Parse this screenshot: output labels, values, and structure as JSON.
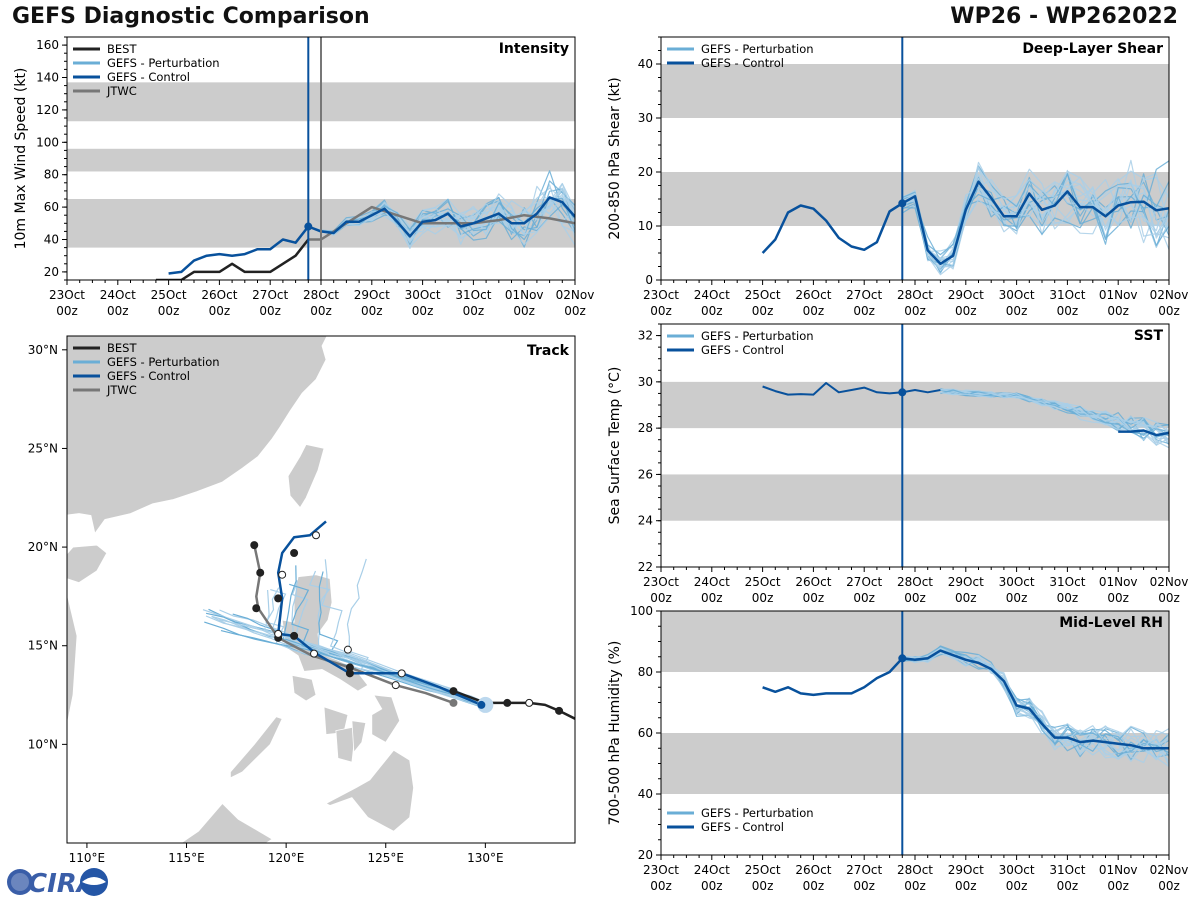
{
  "header": {
    "title_left": "GEFS Diagnostic Comparison",
    "title_right": "WP26 - WP262022"
  },
  "colors": {
    "best": "#222222",
    "perturbation": "#6aaed6",
    "control": "#08519c",
    "jtwc": "#777777",
    "band": "#cccccc",
    "land": "#cccccc"
  },
  "time_axis": {
    "ticks": [
      {
        "day": "23Oct",
        "hour": "00z"
      },
      {
        "day": "24Oct",
        "hour": "00z"
      },
      {
        "day": "25Oct",
        "hour": "00z"
      },
      {
        "day": "26Oct",
        "hour": "00z"
      },
      {
        "day": "27Oct",
        "hour": "00z"
      },
      {
        "day": "28Oct",
        "hour": "00z"
      },
      {
        "day": "29Oct",
        "hour": "00z"
      },
      {
        "day": "30Oct",
        "hour": "00z"
      },
      {
        "day": "31Oct",
        "hour": "00z"
      },
      {
        "day": "01Nov",
        "hour": "00z"
      },
      {
        "day": "02Nov",
        "hour": "00z"
      }
    ]
  },
  "chart_data": [
    {
      "id": "intensity",
      "type": "line",
      "title": "Intensity",
      "ylabel": "10m Max Wind Speed (kt)",
      "ylim": [
        15,
        165
      ],
      "yticks": [
        20,
        40,
        60,
        80,
        100,
        120,
        140,
        160
      ],
      "bands": [
        [
          35,
          65
        ],
        [
          82,
          96
        ],
        [
          113,
          137
        ]
      ],
      "init_day": 4.75,
      "jtwc_day": 5.0,
      "legend": [
        "BEST",
        "GEFS - Perturbation",
        "GEFS - Control",
        "JTWC"
      ],
      "best": {
        "x": [
          2.0,
          2.25,
          2.5,
          2.75,
          3.0,
          3.25,
          3.5,
          3.75,
          4.0,
          4.25,
          4.5,
          4.75
        ],
        "y": [
          15,
          15,
          20,
          20,
          20,
          25,
          20,
          20,
          20,
          25,
          30,
          40
        ]
      },
      "best_early": {
        "x": [
          1.75,
          2.0
        ],
        "y": [
          15,
          15
        ]
      },
      "control": {
        "x": [
          2.0,
          2.25,
          2.5,
          2.75,
          3.0,
          3.25,
          3.5,
          3.75,
          4.0,
          4.25,
          4.5,
          4.75,
          5.0,
          5.25,
          5.5,
          5.75,
          6.0,
          6.25,
          6.5,
          6.75,
          7.0,
          7.25,
          7.5,
          7.75,
          8.0,
          8.25,
          8.5,
          8.75,
          9.0,
          9.25,
          9.5,
          9.75,
          10.0
        ],
        "y": [
          19,
          20,
          27,
          30,
          31,
          30,
          31,
          34,
          34,
          40,
          38,
          48,
          45,
          44,
          51,
          51,
          55,
          59,
          51,
          42,
          51,
          52,
          56,
          48,
          50,
          53,
          56,
          50,
          50,
          56,
          66,
          63,
          54
        ]
      },
      "jtwc": {
        "x": [
          4.75,
          5.0,
          5.25,
          5.5,
          6.0,
          6.5,
          7.0,
          7.5,
          8.0,
          8.5,
          9.0,
          9.5,
          10.0
        ],
        "y": [
          40,
          40,
          45,
          50,
          60,
          55,
          50,
          50,
          50,
          52,
          55,
          53,
          50
        ]
      }
    },
    {
      "id": "shear",
      "type": "line",
      "title": "Deep-Layer Shear",
      "ylabel": "200-850 hPa Shear (kt)",
      "ylim": [
        0,
        45
      ],
      "yticks": [
        0,
        10,
        20,
        30,
        40
      ],
      "bands": [
        [
          10,
          20
        ],
        [
          30,
          40
        ]
      ],
      "init_day": 4.75,
      "legend": [
        "GEFS - Perturbation",
        "GEFS - Control"
      ],
      "control": {
        "x": [
          2.0,
          2.25,
          2.5,
          2.75,
          3.0,
          3.25,
          3.5,
          3.75,
          4.0,
          4.25,
          4.5,
          4.75,
          5.0,
          5.25,
          5.5,
          5.75,
          6.0,
          6.25,
          6.5,
          6.75,
          7.0,
          7.25,
          7.5,
          7.75,
          8.0,
          8.25,
          8.5,
          8.75,
          9.0,
          9.25,
          9.5,
          9.75,
          10.0
        ],
        "y": [
          5,
          7.5,
          12.5,
          13.8,
          13.2,
          11,
          7.8,
          6.2,
          5.6,
          7,
          12.7,
          14.2,
          15.5,
          5.5,
          3,
          4.5,
          13,
          18.2,
          15.2,
          11.8,
          11.8,
          16,
          13,
          13.8,
          16.4,
          13.5,
          13.5,
          11.8,
          13.8,
          14.4,
          14.5,
          12.9,
          13.3
        ]
      }
    },
    {
      "id": "sst",
      "type": "line",
      "title": "SST",
      "ylabel": "Sea Surface Temp (°C)",
      "ylim": [
        22,
        32.5
      ],
      "yticks": [
        22,
        24,
        26,
        28,
        30,
        32
      ],
      "bands": [
        [
          24,
          26
        ],
        [
          28,
          30
        ]
      ],
      "init_day": 4.75,
      "legend": [
        "GEFS - Perturbation",
        "GEFS - Control"
      ],
      "control_a": {
        "x": [
          2.0,
          2.25,
          2.5,
          2.75,
          3.0,
          3.25,
          3.5,
          3.75,
          4.0,
          4.25,
          4.5,
          4.75,
          5.0,
          5.25,
          5.5
        ],
        "y": [
          29.8,
          29.6,
          29.45,
          29.47,
          29.45,
          29.95,
          29.55,
          29.65,
          29.75,
          29.55,
          29.5,
          29.55,
          29.65,
          29.55,
          29.65
        ]
      },
      "control_b": {
        "x": [
          9.0,
          9.25,
          9.5,
          9.75,
          10.0
        ],
        "y": [
          27.85,
          27.85,
          27.9,
          27.7,
          27.8
        ]
      }
    },
    {
      "id": "rh",
      "type": "line",
      "title": "Mid-Level RH",
      "ylabel": "700-500 hPa Humidity (%)",
      "ylim": [
        20,
        100
      ],
      "yticks": [
        20,
        40,
        60,
        80,
        100
      ],
      "bands": [
        [
          40,
          60
        ],
        [
          80,
          100
        ]
      ],
      "init_day": 4.75,
      "legend": [
        "GEFS - Perturbation",
        "GEFS - Control"
      ],
      "control": {
        "x": [
          2.0,
          2.25,
          2.5,
          2.75,
          3.0,
          3.25,
          3.5,
          3.75,
          4.0,
          4.25,
          4.5,
          4.75,
          5.0,
          5.25,
          5.5,
          5.75,
          6.0,
          6.25,
          6.5,
          6.75,
          7.0,
          7.25,
          7.5,
          7.75,
          8.0,
          8.25,
          8.5,
          8.75,
          9.0,
          9.25,
          9.5,
          9.75,
          10.0
        ],
        "y": [
          75,
          73.5,
          75,
          73,
          72.5,
          73,
          73,
          73,
          75,
          78,
          80,
          84.5,
          84,
          84.5,
          87,
          85.5,
          84,
          83,
          81,
          77,
          69,
          68,
          63,
          58.5,
          58.5,
          57,
          57.5,
          57,
          56.5,
          56,
          55,
          55,
          55
        ]
      }
    },
    {
      "id": "track",
      "type": "scatter",
      "title": "Track",
      "xlim": [
        109,
        134.5
      ],
      "ylim": [
        5,
        30.7
      ],
      "xticks": [
        110,
        115,
        120,
        125,
        130
      ],
      "xtick_labels": [
        "110°E",
        "115°E",
        "120°E",
        "125°E",
        "130°E"
      ],
      "yticks": [
        10,
        15,
        20,
        25,
        30
      ],
      "ytick_labels": [
        "10°N",
        "15°N",
        "20°N",
        "25°N",
        "30°N"
      ],
      "legend": [
        "BEST",
        "GEFS - Perturbation",
        "GEFS - Control",
        "JTWC"
      ],
      "best": {
        "lon": [
          134.5,
          133.7,
          133.0,
          132.2,
          131.1,
          130.0,
          128.4
        ],
        "lat": [
          11.3,
          11.7,
          12.0,
          12.1,
          12.1,
          12.1,
          12.7
        ]
      },
      "best_dots_lon": [
        133.7,
        131.1,
        128.4
      ],
      "best_dots_lat": [
        11.7,
        12.1,
        12.7
      ],
      "best_open_lon": [
        132.2
      ],
      "best_open_lat": [
        12.1
      ],
      "control": {
        "lon": [
          129.8,
          127.7,
          125.8,
          123.2,
          121.5,
          120.4,
          119.6,
          119.8,
          119.6,
          119.8,
          120.4,
          121.2,
          122.0
        ],
        "lat": [
          12.0,
          12.9,
          13.6,
          13.6,
          14.6,
          15.5,
          15.6,
          17.4,
          18.7,
          19.7,
          20.5,
          20.6,
          21.3
        ]
      },
      "control_open_lon": [
        125.8,
        123.1,
        121.4,
        119.6,
        119.8,
        121.5
      ],
      "control_open_lat": [
        13.6,
        14.8,
        14.6,
        15.6,
        18.6,
        20.6
      ],
      "control_dots_lon": [
        123.2,
        120.4,
        119.6,
        120.4
      ],
      "control_dots_lat": [
        13.6,
        15.5,
        17.4,
        19.7
      ],
      "jtwc": {
        "lon": [
          128.4,
          127.0,
          125.5,
          123.2,
          121.3,
          119.6,
          118.6,
          118.5,
          118.7,
          118.4
        ],
        "lat": [
          12.1,
          12.6,
          13.0,
          13.9,
          14.5,
          15.4,
          16.9,
          17.5,
          18.7,
          20.1
        ]
      },
      "jtwc_dots_lon": [
        123.2,
        119.6,
        118.5,
        118.7,
        118.4
      ],
      "jtwc_dots_lat": [
        13.9,
        15.4,
        16.9,
        18.7,
        20.1
      ],
      "jtwc_open_lon": [
        125.5
      ],
      "jtwc_open_lat": [
        13.0
      ]
    }
  ],
  "logo": {
    "text": "CIRA"
  }
}
